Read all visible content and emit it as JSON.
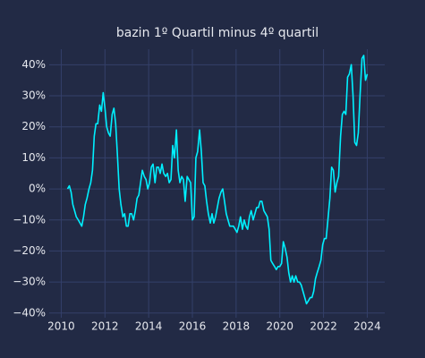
{
  "chart_data": {
    "type": "line",
    "title": "bazin 1º Quartil minus 4º quartil",
    "color": "#00f0ff",
    "grid": true,
    "xlim": [
      2009.45,
      2024.8
    ],
    "ylim": [
      -41.5,
      45
    ],
    "xticks": [
      2010,
      2012,
      2014,
      2016,
      2018,
      2020,
      2022,
      2024
    ],
    "yticks": [
      {
        "value": -40,
        "label": "−40%"
      },
      {
        "value": -30,
        "label": "−30%"
      },
      {
        "value": -20,
        "label": "−20%"
      },
      {
        "value": -10,
        "label": "−10%"
      },
      {
        "value": 0,
        "label": "0%"
      },
      {
        "value": 10,
        "label": "10%"
      },
      {
        "value": 20,
        "label": "20%"
      },
      {
        "value": 30,
        "label": "30%"
      },
      {
        "value": 40,
        "label": "40%"
      }
    ],
    "x": [
      2010.29,
      2010.37,
      2010.45,
      2010.53,
      2010.61,
      2010.69,
      2010.78,
      2010.86,
      2010.94,
      2011.02,
      2011.1,
      2011.18,
      2011.27,
      2011.35,
      2011.43,
      2011.51,
      2011.59,
      2011.67,
      2011.76,
      2011.84,
      2011.92,
      2012.0,
      2012.08,
      2012.16,
      2012.24,
      2012.33,
      2012.41,
      2012.49,
      2012.57,
      2012.65,
      2012.73,
      2012.82,
      2012.9,
      2012.98,
      2013.06,
      2013.14,
      2013.22,
      2013.31,
      2013.39,
      2013.47,
      2013.55,
      2013.63,
      2013.71,
      2013.8,
      2013.88,
      2013.96,
      2014.04,
      2014.12,
      2014.2,
      2014.29,
      2014.37,
      2014.45,
      2014.53,
      2014.61,
      2014.69,
      2014.78,
      2014.86,
      2014.94,
      2015.02,
      2015.1,
      2015.18,
      2015.27,
      2015.35,
      2015.43,
      2015.51,
      2015.59,
      2015.67,
      2015.76,
      2015.84,
      2015.92,
      2016.0,
      2016.08,
      2016.16,
      2016.24,
      2016.33,
      2016.41,
      2016.49,
      2016.57,
      2016.65,
      2016.73,
      2016.82,
      2016.9,
      2016.98,
      2017.06,
      2017.14,
      2017.22,
      2017.31,
      2017.39,
      2017.47,
      2017.55,
      2017.63,
      2017.71,
      2017.8,
      2017.88,
      2017.96,
      2018.04,
      2018.12,
      2018.2,
      2018.29,
      2018.37,
      2018.45,
      2018.53,
      2018.61,
      2018.69,
      2018.78,
      2018.86,
      2018.94,
      2019.02,
      2019.1,
      2019.18,
      2019.27,
      2019.35,
      2019.43,
      2019.51,
      2019.59,
      2019.67,
      2019.76,
      2019.84,
      2019.92,
      2020.0,
      2020.08,
      2020.16,
      2020.24,
      2020.33,
      2020.41,
      2020.49,
      2020.57,
      2020.65,
      2020.73,
      2020.82,
      2020.9,
      2020.98,
      2021.06,
      2021.14,
      2021.22,
      2021.31,
      2021.39,
      2021.47,
      2021.55,
      2021.63,
      2021.71,
      2021.8,
      2021.88,
      2021.96,
      2022.04,
      2022.12,
      2022.2,
      2022.29,
      2022.37,
      2022.45,
      2022.53,
      2022.61,
      2022.69,
      2022.78,
      2022.86,
      2022.94,
      2023.02,
      2023.1,
      2023.18,
      2023.27,
      2023.35,
      2023.43,
      2023.51,
      2023.59,
      2023.67,
      2023.76,
      2023.84,
      2023.92,
      2024.0
    ],
    "values": [
      0,
      1,
      -1,
      -5,
      -7,
      -9,
      -10,
      -11,
      -12,
      -9,
      -5,
      -3,
      0,
      2,
      6,
      17,
      21,
      21,
      27,
      25,
      31,
      26,
      20,
      18,
      17,
      24,
      26,
      21,
      11,
      0,
      -5,
      -9,
      -8,
      -12,
      -12,
      -8,
      -8,
      -10,
      -7,
      -3,
      -2,
      2,
      6,
      4,
      3,
      0,
      2,
      7,
      8,
      2,
      7,
      7,
      5,
      8,
      5,
      4,
      5,
      2,
      3,
      14,
      10,
      19,
      6,
      2,
      4,
      3,
      -4,
      4,
      3,
      2,
      -10,
      -9,
      10,
      12,
      19,
      12,
      2,
      1,
      -4,
      -8,
      -11,
      -8,
      -11,
      -9,
      -6,
      -3,
      -1,
      0,
      -4,
      -8,
      -10,
      -12,
      -12,
      -12,
      -13,
      -14,
      -12,
      -9,
      -13,
      -10,
      -12,
      -13,
      -9,
      -7,
      -10,
      -8,
      -6,
      -6,
      -4,
      -4,
      -7,
      -8,
      -9,
      -13,
      -23,
      -24,
      -25,
      -26,
      -25,
      -25,
      -24,
      -17,
      -19,
      -22,
      -27,
      -30,
      -28,
      -30,
      -28,
      -30,
      -30,
      -31,
      -33,
      -35,
      -37,
      -36,
      -35,
      -35,
      -33,
      -29,
      -27,
      -25,
      -23,
      -18,
      -16,
      -16,
      -10,
      -3,
      7,
      6,
      -1,
      2,
      4,
      17,
      24,
      25,
      24,
      36,
      37,
      40,
      30,
      15,
      14,
      18,
      30,
      42,
      43,
      35,
      37
    ]
  }
}
